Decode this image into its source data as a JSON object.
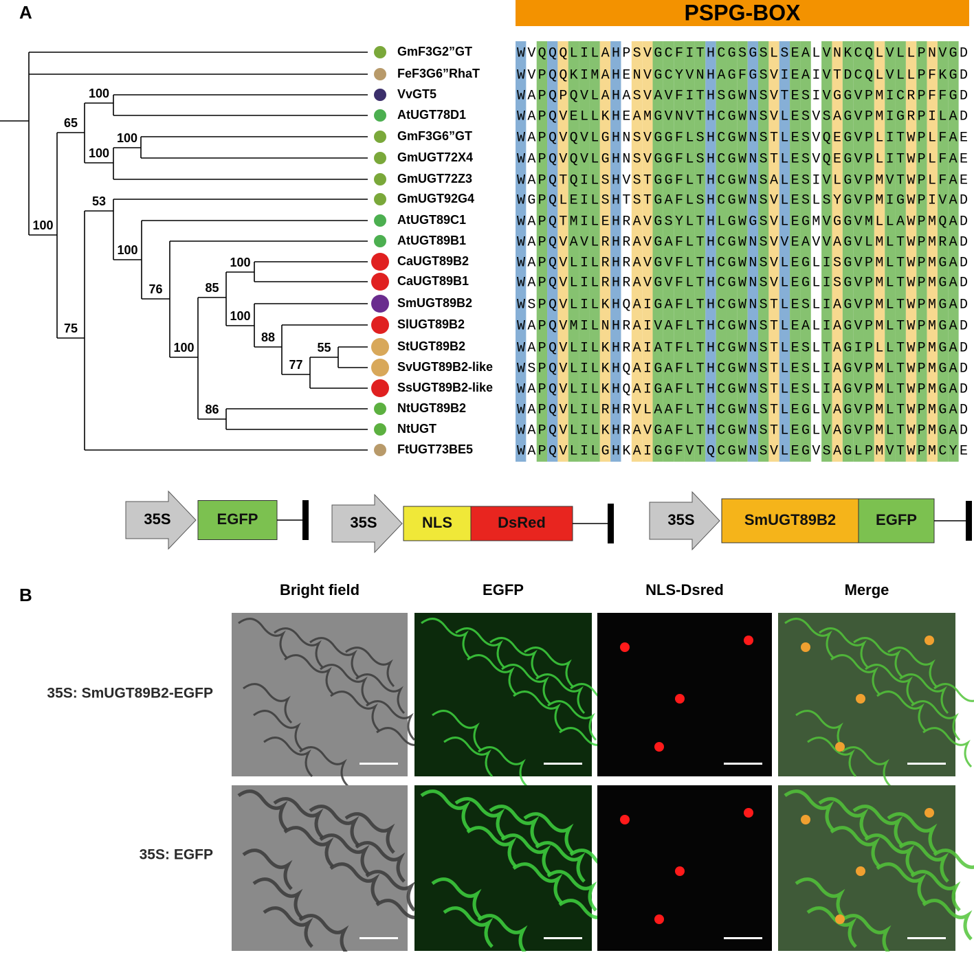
{
  "panel_a": {
    "label": "A",
    "banner": "PSPG-BOX",
    "taxa": [
      {
        "name": "GmF3G2”GT",
        "sequence": "WVQQQLILAHPSVGCFITHCGSGSLSEALVNKCQLVLLPNVGD"
      },
      {
        "name": "FeF3G6”RhaT",
        "sequence": "WVPQQKIMAHENVGCYVNHAGFGSVIEAIVTDCQLVLLPFKGD"
      },
      {
        "name": "VvGT5",
        "sequence": "WAPQPQVLAHASVAVFITHSGWNSVTESIVGGVPMICRPFFGD"
      },
      {
        "name": "AtUGT78D1",
        "sequence": "WAPQVELLKHEAMGVNVTHCGWNSVLESVSAGVPMIGRPILAD"
      },
      {
        "name": "GmF3G6”GT",
        "sequence": "WAPQVQVLGHNSVGGFLSHCGWNSTLESVQEGVPLITWPLFAE"
      },
      {
        "name": "GmUGT72X4",
        "sequence": "WAPQVQVLGHNSVGGFLSHCGWNSTLESVQEGVPLITWPLFAE"
      },
      {
        "name": "GmUGT72Z3",
        "sequence": "WAPQTQILSHVSTGGFLTHCGWNSALESIVLGVPMVTWPLFAE"
      },
      {
        "name": "GmUGT92G4",
        "sequence": "WGPQLEILSHTSTGAFLSHCGWNSVLESLSYGVPMIGWPIVAD"
      },
      {
        "name": "AtUGT89C1",
        "sequence": "WAPQTMILEHRAVGSYLTHLGWGSVLEGMVGGVMLLAWPMQAD"
      },
      {
        "name": "AtUGT89B1",
        "sequence": "WAPQVAVLRHRAVGAFLTHCGWNSVVEAVVAGVLMLTWPMRAD"
      },
      {
        "name": "CaUGT89B2",
        "sequence": "WAPQVLILRHRAVGVFLTHCGWNSVLEGLISGVPMLTWPMGAD"
      },
      {
        "name": "CaUGT89B1",
        "sequence": "WAPQVLILRHRAVGVFLTHCGWNSVLEGLISGVPMLTWPMGAD"
      },
      {
        "name": "SmUGT89B2",
        "sequence": "WSPQVLILKHQAIGAFLTHCGWNSTLESLIAGVPMLTWPMGAD"
      },
      {
        "name": "SlUGT89B2",
        "sequence": "WAPQVMILNHRAIVAFLTHCGWNSTLEALIAGVPMLTWPMGAD"
      },
      {
        "name": "StUGT89B2",
        "sequence": "WAPQVLILKHRAIATFLTHCGWNSTLESLTAGIPLLTWPMGAD"
      },
      {
        "name": "SvUGT89B2-like",
        "sequence": "WSPQVLILKHQAIGAFLTHCGWNSTLESLIAGVPMLTWPMGAD"
      },
      {
        "name": "SsUGT89B2-like",
        "sequence": "WAPQVLILKHQAIGAFLTHCGWNSTLESLIAGVPMLTWPMGAD"
      },
      {
        "name": "NtUGT89B2",
        "sequence": "WAPQVLILRHRVLAAFLTHCGWNSTLEGLVAGVPMLTWPMGAD"
      },
      {
        "name": "NtUGT",
        "sequence": "WAPQVLILKHRAVGAFLTHCGWNSTLEGLVAGVPMLTWPMGAD"
      },
      {
        "name": "FtUGT73BE5",
        "sequence": "WAPQVLILGHKAIGGFVTQCGWNSVLEGVSAGLPMVTWPMCYE"
      }
    ],
    "support": [
      100,
      65,
      75,
      100,
      100,
      100,
      53,
      100,
      76,
      100,
      85,
      86,
      100,
      100,
      88,
      77,
      55
    ]
  },
  "constructs": [
    {
      "promoter": "35S",
      "parts": [
        "EGFP"
      ]
    },
    {
      "promoter": "35S",
      "parts": [
        "NLS",
        "DsRed"
      ]
    },
    {
      "promoter": "35S",
      "parts": [
        "SmUGT89B2",
        "EGFP"
      ]
    }
  ],
  "panel_b": {
    "label": "B",
    "columns": [
      "Bright field",
      "EGFP",
      "NLS-Dsred",
      "Merge"
    ],
    "rows": [
      "35S: SmUGT89B2-EGFP",
      "35S: EGFP"
    ]
  }
}
